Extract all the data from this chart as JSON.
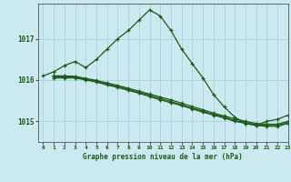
{
  "title": "Graphe pression niveau de la mer (hPa)",
  "background_color": "#cce9f0",
  "grid_color": "#aad4e0",
  "line_color": "#1a5c1a",
  "xlim": [
    -0.5,
    23
  ],
  "ylim": [
    1014.5,
    1017.85
  ],
  "yticks": [
    1015,
    1016,
    1017
  ],
  "xticks": [
    0,
    1,
    2,
    3,
    4,
    5,
    6,
    7,
    8,
    9,
    10,
    11,
    12,
    13,
    14,
    15,
    16,
    17,
    18,
    19,
    20,
    21,
    22,
    23
  ],
  "series": [
    {
      "x": [
        0,
        1,
        2,
        3,
        4,
        5,
        6,
        7,
        8,
        9,
        10,
        11,
        12,
        13,
        14,
        15,
        16,
        17,
        18,
        19,
        20,
        21,
        22,
        23
      ],
      "y": [
        1016.1,
        1016.2,
        1016.35,
        1016.45,
        1016.3,
        1016.5,
        1016.75,
        1017.0,
        1017.2,
        1017.45,
        1017.7,
        1017.55,
        1017.2,
        1016.75,
        1016.4,
        1016.05,
        1015.65,
        1015.35,
        1015.1,
        1014.95,
        1014.9,
        1015.0,
        1015.05,
        1015.15
      ]
    },
    {
      "x": [
        1,
        2,
        3,
        4,
        5,
        6,
        7,
        8,
        9,
        10,
        11,
        12,
        13,
        14,
        15,
        16,
        17,
        18,
        19,
        20,
        21,
        22,
        23
      ],
      "y": [
        1016.05,
        1016.05,
        1016.05,
        1016.0,
        1015.95,
        1015.88,
        1015.82,
        1015.75,
        1015.68,
        1015.6,
        1015.52,
        1015.45,
        1015.38,
        1015.3,
        1015.22,
        1015.15,
        1015.08,
        1015.0,
        1014.95,
        1014.9,
        1014.88,
        1014.88,
        1014.95
      ]
    },
    {
      "x": [
        1,
        2,
        3,
        4,
        5,
        6,
        7,
        8,
        9,
        10,
        11,
        12,
        13,
        14,
        15,
        16,
        17,
        18,
        19,
        20,
        21,
        22,
        23
      ],
      "y": [
        1016.08,
        1016.08,
        1016.07,
        1016.02,
        1015.97,
        1015.9,
        1015.84,
        1015.77,
        1015.7,
        1015.63,
        1015.55,
        1015.48,
        1015.4,
        1015.32,
        1015.25,
        1015.17,
        1015.1,
        1015.02,
        1014.97,
        1014.92,
        1014.9,
        1014.9,
        1014.97
      ]
    },
    {
      "x": [
        1,
        2,
        3,
        4,
        5,
        6,
        7,
        8,
        9,
        10,
        11,
        12,
        13,
        14,
        15,
        16,
        17,
        18,
        19,
        20,
        21,
        22,
        23
      ],
      "y": [
        1016.1,
        1016.1,
        1016.09,
        1016.04,
        1015.99,
        1015.93,
        1015.87,
        1015.8,
        1015.73,
        1015.66,
        1015.59,
        1015.52,
        1015.44,
        1015.36,
        1015.28,
        1015.2,
        1015.13,
        1015.06,
        1015.0,
        1014.95,
        1014.93,
        1014.93,
        1015.0
      ]
    }
  ]
}
